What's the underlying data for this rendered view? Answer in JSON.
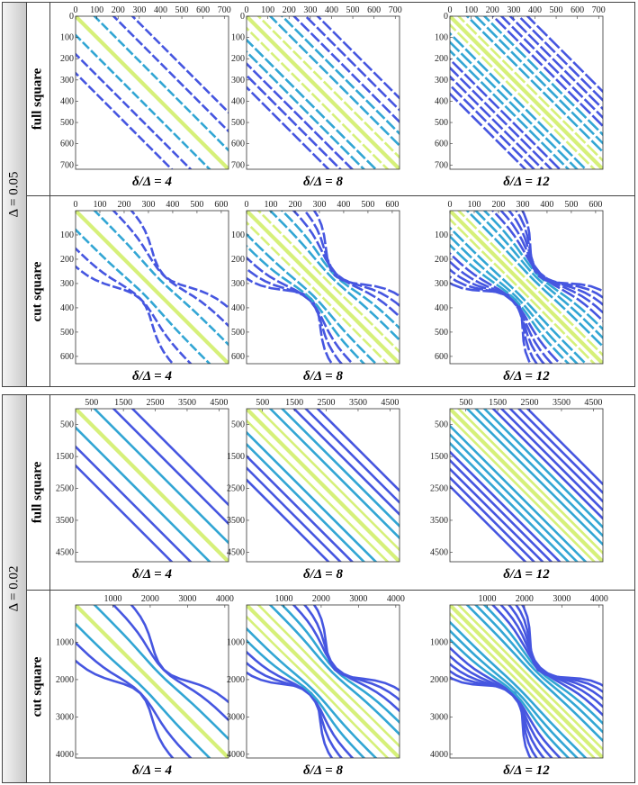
{
  "blocks": [
    {
      "label": "Δ = 0.05",
      "rows": [
        "full square",
        "cut square"
      ]
    },
    {
      "label": "Δ = 0.02",
      "rows": [
        "full square",
        "cut square"
      ]
    }
  ],
  "colors": {
    "band_low": "#4656e0",
    "band_mid": "#32a6d4",
    "band_high": "#d6f07a"
  },
  "chart_data": [
    {
      "type": "heatmap",
      "block": "Δ = 0.05",
      "row": "full square",
      "caption": "δ/Δ = 4",
      "size": 720,
      "xticks": [
        0,
        100,
        200,
        300,
        400,
        500,
        600,
        700
      ],
      "yticks": [
        0,
        100,
        200,
        300,
        400,
        500,
        600,
        700
      ],
      "bands": 3,
      "cut": false
    },
    {
      "type": "heatmap",
      "block": "Δ = 0.05",
      "row": "full square",
      "caption": "δ/Δ = 8",
      "size": 720,
      "xticks": [
        0,
        100,
        200,
        300,
        400,
        500,
        600,
        700
      ],
      "yticks": [
        0,
        100,
        200,
        300,
        400,
        500,
        600,
        700
      ],
      "bands": 6,
      "cut": false
    },
    {
      "type": "heatmap",
      "block": "Δ = 0.05",
      "row": "full square",
      "caption": "δ/Δ = 12",
      "size": 720,
      "xticks": [
        0,
        100,
        200,
        300,
        400,
        500,
        600,
        700
      ],
      "yticks": [
        0,
        100,
        200,
        300,
        400,
        500,
        600,
        700
      ],
      "bands": 9,
      "cut": false
    },
    {
      "type": "heatmap",
      "block": "Δ = 0.05",
      "row": "cut square",
      "caption": "δ/Δ = 4",
      "size": 630,
      "xticks": [
        0,
        100,
        200,
        300,
        400,
        500,
        600
      ],
      "yticks": [
        100,
        200,
        300,
        400,
        500,
        600
      ],
      "bands": 3,
      "cut": true
    },
    {
      "type": "heatmap",
      "block": "Δ = 0.05",
      "row": "cut square",
      "caption": "δ/Δ = 8",
      "size": 630,
      "xticks": [
        0,
        100,
        200,
        300,
        400,
        500,
        600
      ],
      "yticks": [
        100,
        200,
        300,
        400,
        500,
        600
      ],
      "bands": 6,
      "cut": true
    },
    {
      "type": "heatmap",
      "block": "Δ = 0.05",
      "row": "cut square",
      "caption": "δ/Δ = 12",
      "size": 630,
      "xticks": [
        0,
        100,
        200,
        300,
        400,
        500,
        600
      ],
      "yticks": [
        100,
        200,
        300,
        400,
        500,
        600
      ],
      "bands": 9,
      "cut": true
    },
    {
      "type": "heatmap",
      "block": "Δ = 0.02",
      "row": "full square",
      "caption": "δ/Δ = 4",
      "size": 4800,
      "xticks": [
        500,
        1500,
        2500,
        3500,
        4500
      ],
      "yticks": [
        500,
        1500,
        2500,
        3500,
        4500
      ],
      "bands": 3,
      "cut": false
    },
    {
      "type": "heatmap",
      "block": "Δ = 0.02",
      "row": "full square",
      "caption": "δ/Δ = 8",
      "size": 4800,
      "xticks": [
        500,
        1500,
        2500,
        3500,
        4500
      ],
      "yticks": [
        500,
        1500,
        2500,
        3500,
        4500
      ],
      "bands": 6,
      "cut": false
    },
    {
      "type": "heatmap",
      "block": "Δ = 0.02",
      "row": "full square",
      "caption": "δ/Δ = 12",
      "size": 4800,
      "xticks": [
        500,
        1500,
        2500,
        3500,
        4500
      ],
      "yticks": [
        500,
        1500,
        2500,
        3500,
        4500
      ],
      "bands": 9,
      "cut": false
    },
    {
      "type": "heatmap",
      "block": "Δ = 0.02",
      "row": "cut square",
      "caption": "δ/Δ = 4",
      "size": 4100,
      "xticks": [
        1000,
        2000,
        3000,
        4000
      ],
      "yticks": [
        1000,
        2000,
        3000,
        4000
      ],
      "bands": 3,
      "cut": true
    },
    {
      "type": "heatmap",
      "block": "Δ = 0.02",
      "row": "cut square",
      "caption": "δ/Δ = 8",
      "size": 4100,
      "xticks": [
        1000,
        2000,
        3000,
        4000
      ],
      "yticks": [
        1000,
        2000,
        3000,
        4000
      ],
      "bands": 6,
      "cut": true
    },
    {
      "type": "heatmap",
      "block": "Δ = 0.02",
      "row": "cut square",
      "caption": "δ/Δ = 12",
      "size": 4100,
      "xticks": [
        1000,
        2000,
        3000,
        4000
      ],
      "yticks": [
        1000,
        2000,
        3000,
        4000
      ],
      "bands": 9,
      "cut": true
    }
  ]
}
